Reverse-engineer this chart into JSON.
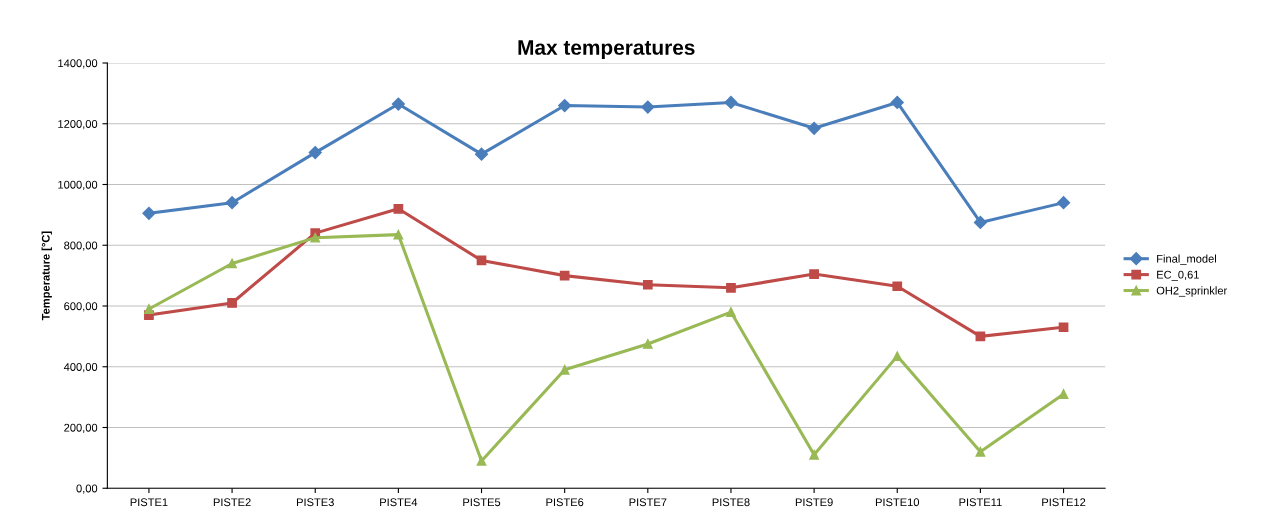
{
  "chart_data": {
    "type": "line",
    "title": "Max temperatures",
    "ylabel": "Temperature [°C]",
    "categories": [
      "PISTE1",
      "PISTE2",
      "PISTE3",
      "PISTE4",
      "PISTE5",
      "PISTE6",
      "PISTE7",
      "PISTE8",
      "PISTE9",
      "PISTE10",
      "PISTE11",
      "PISTE12"
    ],
    "series": [
      {
        "name": "Final_model",
        "color": "#4a7ebb",
        "marker": "diamond",
        "values": [
          905,
          940,
          1105,
          1265,
          1100,
          1260,
          1255,
          1270,
          1185,
          1270,
          875,
          940
        ]
      },
      {
        "name": "EC_0,61",
        "color": "#be4b48",
        "marker": "square",
        "values": [
          570,
          610,
          840,
          920,
          750,
          700,
          670,
          660,
          705,
          665,
          500,
          530
        ]
      },
      {
        "name": "OH2_sprinkler",
        "color": "#98b954",
        "marker": "triangle",
        "values": [
          590,
          740,
          825,
          835,
          90,
          390,
          475,
          580,
          110,
          435,
          120,
          310
        ]
      }
    ],
    "ylim": [
      0,
      1400
    ],
    "yticks": [
      {
        "value": 0,
        "label": "0,00"
      },
      {
        "value": 200,
        "label": "200,00"
      },
      {
        "value": 400,
        "label": "400,00"
      },
      {
        "value": 600,
        "label": "600,00"
      },
      {
        "value": 800,
        "label": "800,00"
      },
      {
        "value": 1000,
        "label": "1000,00"
      },
      {
        "value": 1200,
        "label": "1200,00"
      },
      {
        "value": 1400,
        "label": "1400,00"
      }
    ],
    "grid": "y",
    "legend": "right",
    "line_style": "solid"
  }
}
